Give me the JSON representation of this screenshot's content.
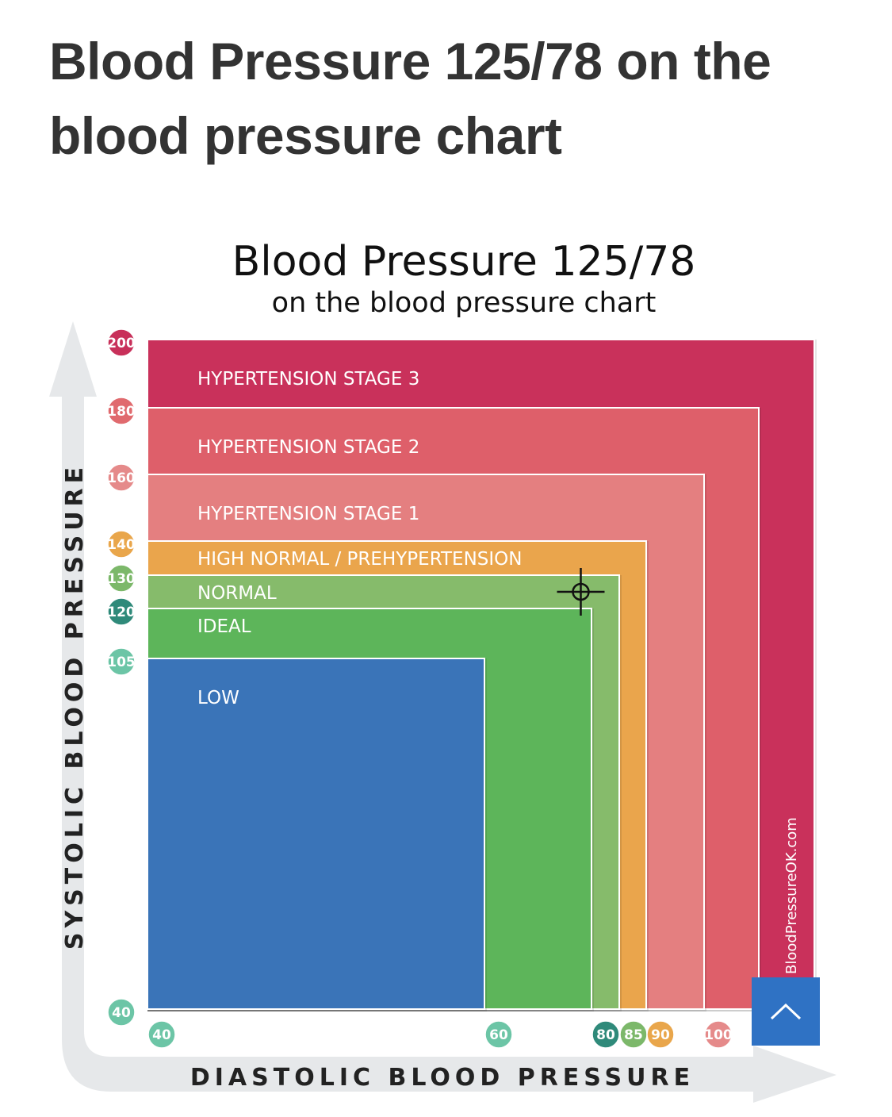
{
  "page": {
    "title": "Blood Pressure 125/78 on the blood pressure chart"
  },
  "scroll_top": {
    "icon": "chevron-up-icon"
  },
  "chart_data": {
    "type": "area",
    "title": "Blood Pressure 125/78",
    "subtitle": "on the blood pressure chart",
    "xlabel": "DIASTOLIC BLOOD PRESSURE",
    "ylabel": "SYSTOLIC BLOOD PRESSURE",
    "xlim": [
      40,
      120
    ],
    "ylim": [
      40,
      200
    ],
    "x_ticks": [
      {
        "label": "40",
        "value": 40,
        "color": "#6cc5a6"
      },
      {
        "label": "60",
        "value": 60,
        "color": "#6cc5a6"
      },
      {
        "label": "80",
        "value": 80,
        "color": "#2f8a7a"
      },
      {
        "label": "85",
        "value": 85,
        "color": "#7cb86a"
      },
      {
        "label": "90",
        "value": 90,
        "color": "#e9a64b"
      },
      {
        "label": "100",
        "value": 100,
        "color": "#e58a8a"
      }
    ],
    "y_ticks": [
      {
        "label": "200",
        "value": 200,
        "color": "#c8305a"
      },
      {
        "label": "180",
        "value": 180,
        "color": "#e06a6e"
      },
      {
        "label": "160",
        "value": 160,
        "color": "#e58a8a"
      },
      {
        "label": "140",
        "value": 140,
        "color": "#e9a64b"
      },
      {
        "label": "130",
        "value": 130,
        "color": "#7cb86a"
      },
      {
        "label": "120",
        "value": 120,
        "color": "#2f8a7a"
      },
      {
        "label": "105",
        "value": 105,
        "color": "#6cc5a6"
      },
      {
        "label": "40",
        "value": 40,
        "color": "#6cc5a6"
      }
    ],
    "zones": [
      {
        "name": "HYPERTENSION STAGE 3",
        "systolic_max": 200,
        "diastolic_max": 120,
        "color": "#c9315b"
      },
      {
        "name": "HYPERTENSION STAGE 2",
        "systolic_max": 180,
        "diastolic_max": 110,
        "color": "#de5f6a"
      },
      {
        "name": "HYPERTENSION STAGE 1",
        "systolic_max": 160,
        "diastolic_max": 100,
        "color": "#e47f80"
      },
      {
        "name": "HIGH NORMAL / PREHYPERTENSION",
        "systolic_max": 140,
        "diastolic_max": 90,
        "color": "#eaa54c"
      },
      {
        "name": "NORMAL",
        "systolic_max": 130,
        "diastolic_max": 85,
        "color": "#86bb6b"
      },
      {
        "name": "IDEAL",
        "systolic_max": 120,
        "diastolic_max": 80,
        "color": "#5db55a"
      },
      {
        "name": "LOW",
        "systolic_max": 105,
        "diastolic_max": 60,
        "color": "#3a74b8"
      }
    ],
    "point": {
      "systolic": 125,
      "diastolic": 78
    },
    "watermark": "BloodPressureOK.com"
  }
}
